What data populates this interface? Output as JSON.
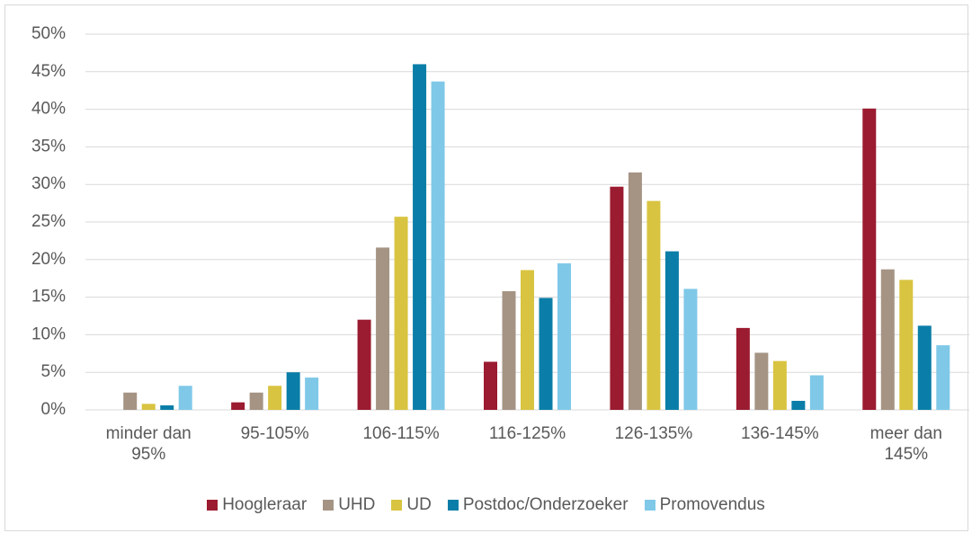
{
  "chart_data": {
    "type": "bar",
    "categories": [
      "minder dan 95%",
      "95-105%",
      "106-115%",
      "116-125%",
      "126-135%",
      "136-145%",
      "meer dan 145%"
    ],
    "series": [
      {
        "name": "Hoogleraar",
        "color": "#9b1b30",
        "values": [
          0,
          1.0,
          12.0,
          6.4,
          29.7,
          10.9,
          40.1
        ]
      },
      {
        "name": "UHD",
        "color": "#a59484",
        "values": [
          2.3,
          2.3,
          21.6,
          15.8,
          31.6,
          7.6,
          18.7
        ]
      },
      {
        "name": "UD",
        "color": "#d8c440",
        "values": [
          0.8,
          3.2,
          25.7,
          18.6,
          27.8,
          6.5,
          17.3
        ]
      },
      {
        "name": "Postdoc/Onderzoeker",
        "color": "#0a7ea8",
        "values": [
          0.6,
          5.0,
          46.0,
          14.9,
          21.1,
          1.2,
          11.2
        ]
      },
      {
        "name": "Promovendus",
        "color": "#7fc8e8",
        "values": [
          3.2,
          4.3,
          43.7,
          19.5,
          16.1,
          4.6,
          8.6
        ]
      }
    ],
    "ylim": [
      0,
      50
    ],
    "yticks": [
      {
        "value": 0,
        "label": "0%"
      },
      {
        "value": 5,
        "label": "5%"
      },
      {
        "value": 10,
        "label": "10%"
      },
      {
        "value": 15,
        "label": "15%"
      },
      {
        "value": 20,
        "label": "20%"
      },
      {
        "value": 25,
        "label": "25%"
      },
      {
        "value": 30,
        "label": "30%"
      },
      {
        "value": 35,
        "label": "35%"
      },
      {
        "value": 40,
        "label": "40%"
      },
      {
        "value": 45,
        "label": "45%"
      },
      {
        "value": 50,
        "label": "50%"
      }
    ],
    "grid": true,
    "legend": "bottom"
  }
}
